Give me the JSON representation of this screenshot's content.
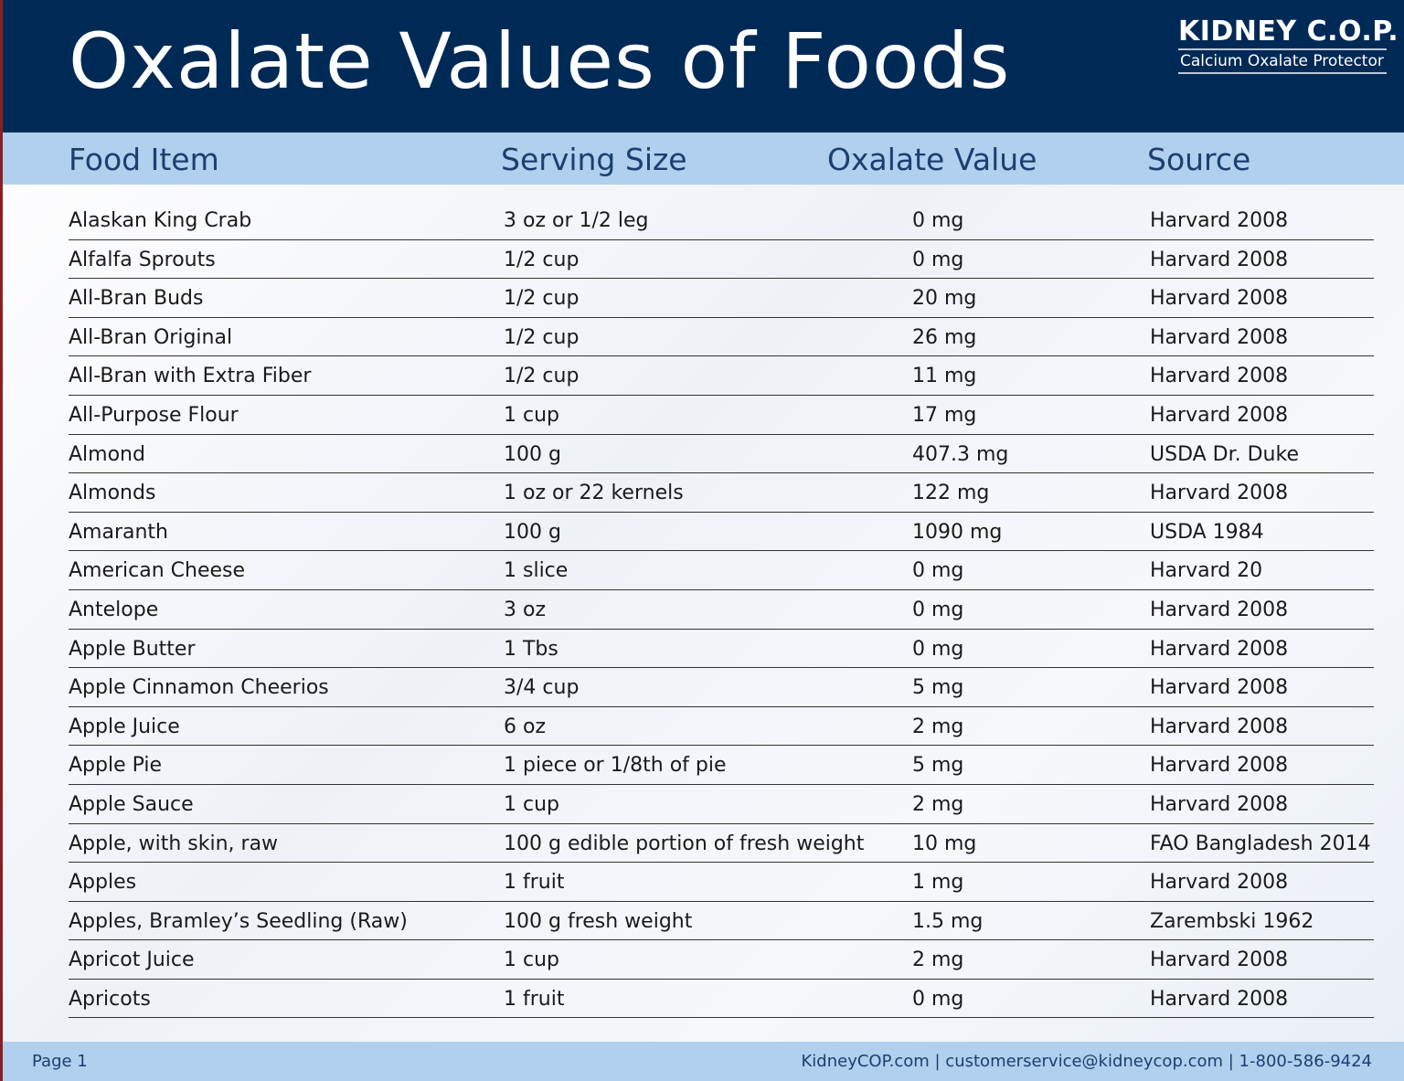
{
  "header": {
    "title": "Oxalate Values of Foods",
    "logo_main": "KIDNEY C.O.P.",
    "logo_sub": "Calcium Oxalate Protector"
  },
  "columns": [
    "Food Item",
    "Serving Size",
    "Oxalate Value",
    "Source"
  ],
  "rows": [
    [
      "Alaskan King Crab",
      "3 oz or 1/2 leg",
      "0 mg",
      "Harvard 2008"
    ],
    [
      "Alfalfa Sprouts",
      "1/2 cup",
      "0 mg",
      "Harvard 2008"
    ],
    [
      "All-Bran Buds",
      "1/2 cup",
      "20 mg",
      "Harvard 2008"
    ],
    [
      "All-Bran Original",
      "1/2 cup",
      "26 mg",
      "Harvard 2008"
    ],
    [
      "All-Bran with Extra Fiber",
      "1/2 cup",
      "11 mg",
      "Harvard 2008"
    ],
    [
      "All-Purpose Flour",
      "1 cup",
      "17 mg",
      "Harvard 2008"
    ],
    [
      "Almond",
      "100 g",
      "407.3 mg",
      "USDA Dr. Duke"
    ],
    [
      "Almonds",
      "1 oz or 22 kernels",
      "122 mg",
      "Harvard 2008"
    ],
    [
      "Amaranth",
      "100 g",
      "1090 mg",
      "USDA 1984"
    ],
    [
      "American Cheese",
      "1 slice",
      "0 mg",
      "Harvard 20"
    ],
    [
      "Antelope",
      "3 oz",
      "0 mg",
      "Harvard 2008"
    ],
    [
      "Apple Butter",
      "1 Tbs",
      "0 mg",
      "Harvard 2008"
    ],
    [
      "Apple Cinnamon Cheerios",
      "3/4 cup",
      "5 mg",
      "Harvard 2008"
    ],
    [
      "Apple Juice",
      "6 oz",
      "2 mg",
      "Harvard 2008"
    ],
    [
      "Apple Pie",
      "1 piece or 1/8th of pie",
      "5 mg",
      "Harvard 2008"
    ],
    [
      "Apple Sauce",
      "1 cup",
      "2 mg",
      "Harvard 2008"
    ],
    [
      "Apple, with skin, raw",
      "100 g edible portion of fresh weight",
      "10 mg",
      "FAO Bangladesh 2014"
    ],
    [
      "Apples",
      "1 fruit",
      "1 mg",
      "Harvard 2008"
    ],
    [
      "Apples, Bramley’s Seedling (Raw)",
      "100 g fresh weight",
      "1.5 mg",
      "Zarembski 1962"
    ],
    [
      "Apricot Juice",
      "1 cup",
      "2 mg",
      "Harvard 2008"
    ],
    [
      "Apricots",
      "1 fruit",
      "0 mg",
      "Harvard 2008"
    ]
  ],
  "footer": {
    "page": "Page 1",
    "contact": "KidneyCOP.com  |  customerservice@kidneycop.com  |  1-800-586-9424"
  },
  "colors": {
    "navy": "#002a56",
    "light_blue": "#b0d0ee",
    "heading_text": "#1c3f70"
  }
}
